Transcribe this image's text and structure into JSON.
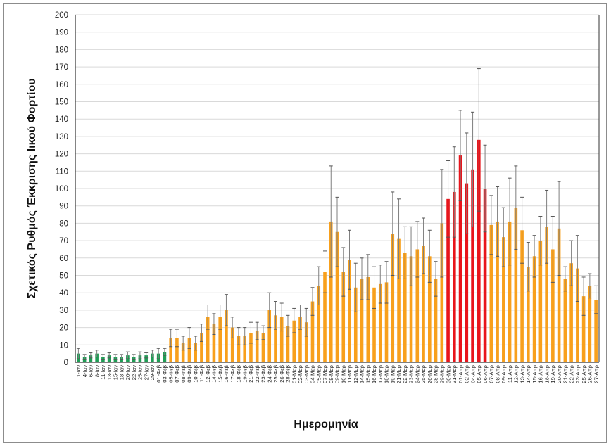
{
  "chart_data": {
    "type": "bar",
    "title": "",
    "xlabel": "Ημερομηνία",
    "ylabel": "Σχετικός Ρυθμός Έκκρισης Ιικού Φορτίου",
    "ylim": [
      0,
      200
    ],
    "yticks": [
      0,
      10,
      20,
      30,
      40,
      50,
      60,
      70,
      80,
      90,
      100,
      110,
      120,
      130,
      140,
      150,
      160,
      170,
      180,
      190,
      200
    ],
    "grid": true,
    "colors": {
      "low": "#1f9d55",
      "mid": "#f8a01c",
      "high": "#e8141b",
      "error": "#7f7f7f",
      "grid": "#d9d9d9"
    },
    "categories": [
      "1-Ιαν",
      "4-Ιαν",
      "6-Ιαν",
      "8-Ιαν",
      "11-Ιαν",
      "13-Ιαν",
      "15-Ιαν",
      "18-Ιαν",
      "20-Ιαν",
      "22-Ιαν",
      "25-Ιαν",
      "27-Ιαν",
      "29-Ιαν",
      "01-Φεβ",
      "03-Φεβ",
      "05-Φεβ",
      "07-Φεβ",
      "08-Φεβ",
      "09-Φεβ",
      "10-Φεβ",
      "11-Φεβ",
      "12-Φεβ",
      "14-Φεβ",
      "15-Φεβ",
      "16-Φεβ",
      "17-Φεβ",
      "18-Φεβ",
      "19-Φεβ",
      "21-Φεβ",
      "22-Φεβ",
      "23-Φεβ",
      "24-Φεβ",
      "25-Φεβ",
      "26-Φεβ",
      "28-Φεβ",
      "01-Μαρ",
      "02-Μαρ",
      "03-Μαρ",
      "04-Μαρ",
      "05-Μαρ",
      "07-Μαρ",
      "08-Μαρ",
      "09-Μαρ",
      "10-Μαρ",
      "11-Μαρ",
      "12-Μαρ",
      "14-Μαρ",
      "15-Μαρ",
      "16-Μαρ",
      "17-Μαρ",
      "18-Μαρ",
      "19-Μαρ",
      "21-Μαρ",
      "22-Μαρ",
      "23-Μαρ",
      "24-Μαρ",
      "25-Μαρ",
      "26-Μαρ",
      "28-Μαρ",
      "29-Μαρ",
      "30-Μαρ",
      "31-Μαρ",
      "01-Απρ",
      "02-Απρ",
      "04-Απρ",
      "05-Απρ",
      "06-Απρ",
      "07-Απρ",
      "08-Απρ",
      "09-Απρ",
      "11-Απρ",
      "12-Απρ",
      "13-Απρ",
      "14-Απρ",
      "15-Απρ",
      "16-Απρ",
      "18-Απρ",
      "19-Απρ",
      "20-Απρ",
      "21-Απρ",
      "22-Απρ",
      "23-Απρ",
      "25-Απρ",
      "26-Απρ",
      "27-Απρ"
    ],
    "values": [
      5,
      3,
      4,
      5,
      3,
      4,
      3,
      3,
      4,
      3,
      4,
      4,
      5,
      5,
      6,
      14,
      14,
      11,
      14,
      11,
      17,
      26,
      22,
      26,
      30,
      20,
      15,
      15,
      17,
      18,
      17,
      30,
      27,
      26,
      21,
      24,
      26,
      23,
      35,
      44,
      52,
      81,
      75,
      52,
      59,
      43,
      48,
      49,
      43,
      45,
      46,
      74,
      71,
      63,
      61,
      65,
      67,
      61,
      48,
      80,
      94,
      98,
      119,
      103,
      111,
      128,
      100,
      79,
      81,
      72,
      81,
      89,
      76,
      55,
      61,
      70,
      78,
      65,
      77,
      48,
      57,
      54,
      38,
      44,
      36
    ],
    "errors": [
      3,
      1.5,
      1.5,
      2,
      1.5,
      1.5,
      1.5,
      1.5,
      2,
      1.5,
      2,
      1.5,
      2,
      3,
      2,
      5,
      5,
      4,
      6,
      4,
      5,
      7,
      6,
      7,
      9,
      6,
      5,
      5,
      6,
      5,
      4,
      10,
      8,
      8,
      6,
      7,
      7,
      8,
      8,
      11,
      12,
      32,
      20,
      14,
      17,
      14,
      12,
      13,
      12,
      11,
      12,
      24,
      23,
      15,
      17,
      16,
      16,
      15,
      10,
      31,
      22,
      26,
      26,
      29,
      33,
      41,
      25,
      17,
      20,
      17,
      25,
      24,
      19,
      14,
      12,
      14,
      21,
      19,
      27,
      7,
      13,
      19,
      11,
      7,
      8
    ],
    "level": [
      "low",
      "low",
      "low",
      "low",
      "low",
      "low",
      "low",
      "low",
      "low",
      "low",
      "low",
      "low",
      "low",
      "low",
      "low",
      "mid",
      "mid",
      "mid",
      "mid",
      "mid",
      "mid",
      "mid",
      "mid",
      "mid",
      "mid",
      "mid",
      "mid",
      "mid",
      "mid",
      "mid",
      "mid",
      "mid",
      "mid",
      "mid",
      "mid",
      "mid",
      "mid",
      "mid",
      "mid",
      "mid",
      "mid",
      "mid",
      "mid",
      "mid",
      "mid",
      "mid",
      "mid",
      "mid",
      "mid",
      "mid",
      "mid",
      "mid",
      "mid",
      "mid",
      "mid",
      "mid",
      "mid",
      "mid",
      "mid",
      "mid",
      "high",
      "high",
      "high",
      "high",
      "high",
      "high",
      "high",
      "mid",
      "mid",
      "mid",
      "mid",
      "mid",
      "mid",
      "mid",
      "mid",
      "mid",
      "mid",
      "mid",
      "mid",
      "mid",
      "mid",
      "mid",
      "mid",
      "mid",
      "mid"
    ]
  }
}
